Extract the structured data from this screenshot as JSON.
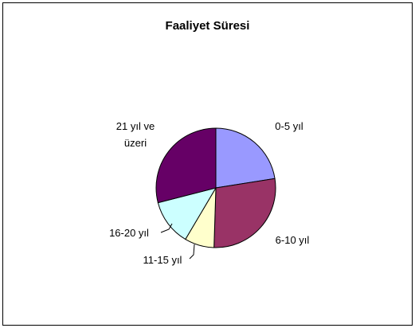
{
  "chart_data": {
    "type": "pie",
    "title": "Faaliyet Süresi",
    "categories": [
      "0-5 yıl",
      "6-10 yıl",
      "11-15 yıl",
      "16-20 yıl",
      "21 yıl ve üzeri"
    ],
    "values": [
      22.5,
      28,
      8,
      12.5,
      29
    ],
    "colors": [
      "#9999ff",
      "#993366",
      "#ffffcc",
      "#ccffff",
      "#660066"
    ]
  }
}
